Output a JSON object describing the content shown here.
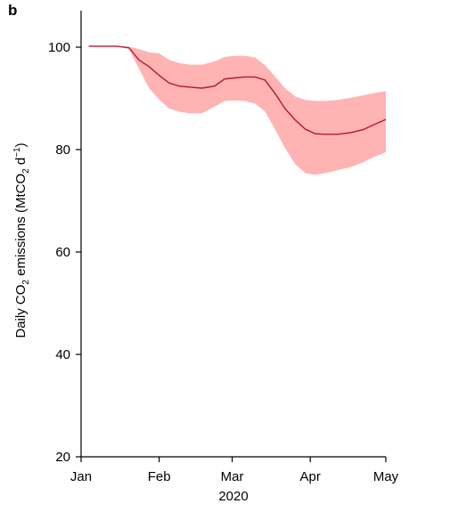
{
  "panel_label": "b",
  "chart_data": {
    "type": "area",
    "title": "",
    "xlabel": "2020",
    "ylabel": {
      "prefix": "Daily CO",
      "sub1": "2",
      "middle": " emissions (MtCO",
      "sub2": "2",
      "unit": " d",
      "sup": "−1",
      "suffix": ")"
    },
    "xlim": [
      "2020-01-01",
      "2020-05-01"
    ],
    "ylim": [
      20,
      100
    ],
    "x_ticks": [
      {
        "date": "2020-01-01",
        "label": "Jan"
      },
      {
        "date": "2020-02-01",
        "label": "Feb"
      },
      {
        "date": "2020-03-01",
        "label": "Mar"
      },
      {
        "date": "2020-04-01",
        "label": "Apr"
      },
      {
        "date": "2020-05-01",
        "label": "May"
      }
    ],
    "y_ticks": [
      20,
      40,
      60,
      80,
      100
    ],
    "grid": false,
    "legend": "none",
    "colors": {
      "line": "#b2182b",
      "band": "#ffb3b3"
    },
    "series": [
      {
        "kind": "line",
        "x": [
          "2020-01-04",
          "2020-01-10",
          "2020-01-15",
          "2020-01-20",
          "2020-01-24",
          "2020-01-28",
          "2020-02-01",
          "2020-02-05",
          "2020-02-09",
          "2020-02-13",
          "2020-02-18",
          "2020-02-23",
          "2020-02-27",
          "2020-03-02",
          "2020-03-06",
          "2020-03-10",
          "2020-03-14",
          "2020-03-18",
          "2020-03-22",
          "2020-03-26",
          "2020-03-30",
          "2020-04-03",
          "2020-04-07",
          "2020-04-12",
          "2020-04-17",
          "2020-04-22",
          "2020-04-26",
          "2020-05-01"
        ],
        "values": [
          100.2,
          100.2,
          100.2,
          99.9,
          97.5,
          96.2,
          94.5,
          93,
          92.4,
          92.2,
          92,
          92.4,
          93.8,
          94,
          94.2,
          94.2,
          93.6,
          91,
          88,
          85.8,
          84,
          83.1,
          83,
          83,
          83.3,
          83.9,
          84.8,
          85.9
        ]
      },
      {
        "kind": "band",
        "x": [
          "2020-01-04",
          "2020-01-10",
          "2020-01-15",
          "2020-01-20",
          "2020-01-24",
          "2020-01-28",
          "2020-02-01",
          "2020-02-05",
          "2020-02-09",
          "2020-02-13",
          "2020-02-18",
          "2020-02-23",
          "2020-02-27",
          "2020-03-02",
          "2020-03-06",
          "2020-03-10",
          "2020-03-14",
          "2020-03-18",
          "2020-03-22",
          "2020-03-26",
          "2020-03-30",
          "2020-04-03",
          "2020-04-07",
          "2020-04-12",
          "2020-04-17",
          "2020-04-22",
          "2020-04-26",
          "2020-05-01"
        ],
        "upper": [
          100.2,
          100.2,
          100.2,
          100.1,
          99.6,
          99,
          98.8,
          97.5,
          96.9,
          96.6,
          96.6,
          97.2,
          98.1,
          98.3,
          98.3,
          98,
          96.5,
          94.3,
          92,
          90.4,
          89.7,
          89.5,
          89.5,
          89.7,
          90.1,
          90.6,
          91,
          91.4
        ],
        "lower": [
          100.2,
          100.2,
          100.2,
          99.6,
          95.8,
          92,
          89.8,
          88,
          87.4,
          87.1,
          87.1,
          88.4,
          89.5,
          89.6,
          89.5,
          89,
          87.5,
          84,
          80.3,
          77.2,
          75.4,
          75.1,
          75.4,
          76,
          76.6,
          77.5,
          78.5,
          79.5
        ]
      }
    ]
  }
}
